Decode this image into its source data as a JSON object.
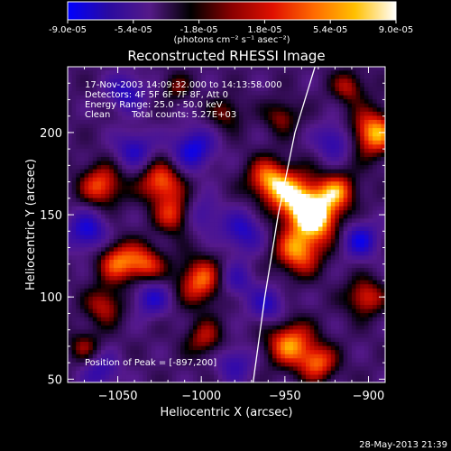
{
  "colorbar": {
    "tick_labels": [
      "-9.0e-05",
      "-5.4e-05",
      "-1.8e-05",
      "1.8e-05",
      "5.4e-05",
      "9.0e-05"
    ],
    "unit_label": "(photons cm⁻² s⁻¹ asec⁻²)",
    "stops": [
      "#0000ff",
      "#2a0aa0",
      "#551a88",
      "#000000",
      "#8a0000",
      "#e01000",
      "#ff6a00",
      "#ffc000",
      "#ffffff"
    ]
  },
  "footer": {
    "date": "28-May-2013 21:39"
  },
  "chart_data": {
    "type": "heatmap",
    "title": "Reconstructed RHESSI Image",
    "xlabel": "Heliocentric X (arcsec)",
    "ylabel": "Heliocentric Y (arcsec)",
    "xlim": [
      -1080,
      -890
    ],
    "ylim": [
      48,
      240
    ],
    "x_ticks": [
      -1050,
      -1000,
      -950,
      -900
    ],
    "x_tick_labels": [
      "−1050",
      "−1000",
      "−950",
      "−900"
    ],
    "y_ticks": [
      50,
      100,
      150,
      200
    ],
    "y_tick_labels": [
      "50",
      "100",
      "150",
      "200"
    ],
    "annotations": [
      "17-Nov-2003 14:09:32.000 to 14:13:58.000",
      "Detectors: 4F 5F 6F 7F 8F, Att 0",
      "Energy Range: 25.0 - 50.0 keV",
      "Clean",
      "Total counts: 5.27E+03"
    ],
    "peak_label": "Position of Peak = [-897,200]",
    "peak": [
      -897,
      200
    ],
    "limb": [
      [
        -969,
        48
      ],
      [
        -962,
        100
      ],
      [
        -954,
        150
      ],
      [
        -944,
        200
      ],
      [
        -932,
        240
      ]
    ],
    "blobs": [
      {
        "x": -960,
        "y": 172,
        "v": 0.85,
        "r": 9
      },
      {
        "x": -943,
        "y": 160,
        "v": 1.0,
        "r": 11
      },
      {
        "x": -930,
        "y": 148,
        "v": 0.95,
        "r": 10
      },
      {
        "x": -942,
        "y": 128,
        "v": 0.9,
        "r": 10
      },
      {
        "x": -918,
        "y": 165,
        "v": 0.75,
        "r": 8
      },
      {
        "x": -897,
        "y": 200,
        "v": 1.0,
        "r": 10
      },
      {
        "x": -1024,
        "y": 170,
        "v": 0.85,
        "r": 9
      },
      {
        "x": -1016,
        "y": 150,
        "v": 0.7,
        "r": 8
      },
      {
        "x": -1000,
        "y": 110,
        "v": 0.85,
        "r": 10
      },
      {
        "x": -1060,
        "y": 168,
        "v": 0.8,
        "r": 9
      },
      {
        "x": -1050,
        "y": 122,
        "v": 0.8,
        "r": 9
      },
      {
        "x": -1033,
        "y": 120,
        "v": 0.7,
        "r": 8
      },
      {
        "x": -1058,
        "y": 95,
        "v": 0.6,
        "r": 8
      },
      {
        "x": -952,
        "y": 210,
        "v": 0.5,
        "r": 7
      },
      {
        "x": -985,
        "y": 212,
        "v": 0.45,
        "r": 7
      },
      {
        "x": -947,
        "y": 72,
        "v": 0.9,
        "r": 10
      },
      {
        "x": -930,
        "y": 60,
        "v": 0.75,
        "r": 8
      },
      {
        "x": -902,
        "y": 100,
        "v": 0.7,
        "r": 8
      },
      {
        "x": -998,
        "y": 75,
        "v": 0.55,
        "r": 8
      },
      {
        "x": -1070,
        "y": 70,
        "v": 0.45,
        "r": 7
      },
      {
        "x": -1015,
        "y": 228,
        "v": 0.4,
        "r": 6
      },
      {
        "x": -912,
        "y": 228,
        "v": 0.55,
        "r": 7
      },
      {
        "x": -1045,
        "y": 225,
        "v": -0.6,
        "r": 8
      },
      {
        "x": -1005,
        "y": 190,
        "v": -0.75,
        "r": 9
      },
      {
        "x": -1040,
        "y": 190,
        "v": -0.6,
        "r": 8
      },
      {
        "x": -1068,
        "y": 140,
        "v": -0.7,
        "r": 9
      },
      {
        "x": -1030,
        "y": 100,
        "v": -0.6,
        "r": 8
      },
      {
        "x": -975,
        "y": 140,
        "v": -0.6,
        "r": 9
      },
      {
        "x": -980,
        "y": 110,
        "v": -0.5,
        "r": 8
      },
      {
        "x": -920,
        "y": 195,
        "v": -0.6,
        "r": 8
      },
      {
        "x": -905,
        "y": 135,
        "v": -0.7,
        "r": 8
      },
      {
        "x": -960,
        "y": 95,
        "v": -0.55,
        "r": 8
      },
      {
        "x": -1060,
        "y": 55,
        "v": -0.5,
        "r": 8
      },
      {
        "x": -980,
        "y": 60,
        "v": -0.5,
        "r": 8
      },
      {
        "x": -1000,
        "y": 150,
        "v": -0.45,
        "r": 8
      }
    ]
  }
}
